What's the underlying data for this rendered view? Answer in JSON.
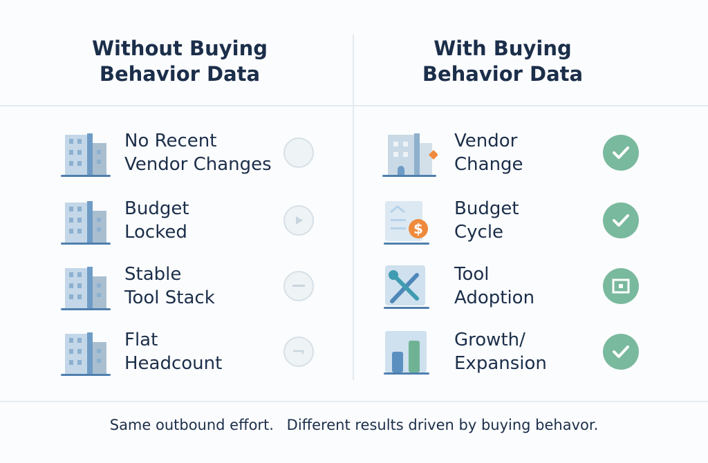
{
  "columns": [
    {
      "title_line1": "Without Buying",
      "title_line2": "Behavior Data",
      "rows": [
        {
          "line1": "No Recent",
          "line2": "Vendor Changes",
          "icon": "building-icon",
          "status_icon": "empty-circle-icon"
        },
        {
          "line1": "Budget",
          "line2": "Locked",
          "icon": "building-icon",
          "status_icon": "play-icon"
        },
        {
          "line1": "Stable",
          "line2": "Tool Stack",
          "icon": "building-icon",
          "status_icon": "minus-icon"
        },
        {
          "line1": "Flat",
          "line2": "Headcount",
          "icon": "building-icon",
          "status_icon": "dash-icon"
        }
      ]
    },
    {
      "title_line1": "With Buying",
      "title_line2": "Behavior Data",
      "rows": [
        {
          "line1": "Vendor",
          "line2": "Change",
          "icon": "building-diamond-icon",
          "status_icon": "check-icon"
        },
        {
          "line1": "Budget",
          "line2": "Cycle",
          "icon": "budget-dollar-icon",
          "status_icon": "check-icon"
        },
        {
          "line1": "Tool",
          "line2": "Adoption",
          "icon": "tools-icon",
          "status_icon": "square-target-icon"
        },
        {
          "line1": "Growth/",
          "line2": "Expansion",
          "icon": "bar-chart-icon",
          "status_icon": "check-icon"
        }
      ]
    }
  ],
  "footer": {
    "part1": "Same outbound effort.",
    "part2": "Different results driven by buying behavor."
  },
  "colors": {
    "text": "#1b2e4a",
    "positive": "#79b99d",
    "accent": "#ef8a3c",
    "icon_blue": "#5b8fbf"
  }
}
